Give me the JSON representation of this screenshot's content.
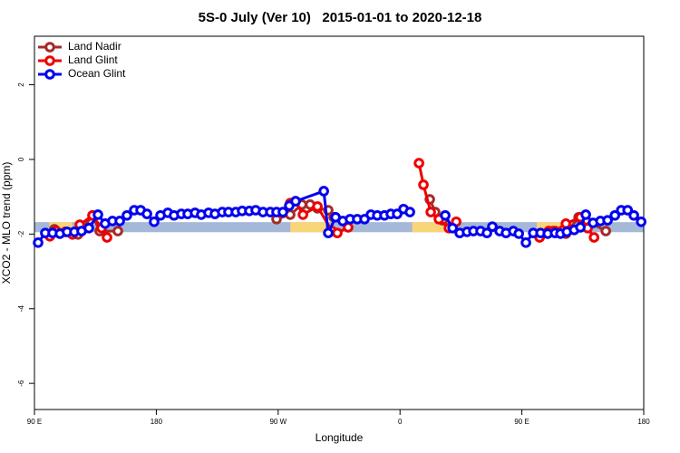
{
  "chart_data": {
    "type": "line",
    "title": "5S-0 July (Ver 10)   2015-01-01 to 2020-12-18",
    "x_label": "Longitude",
    "y_label": "XCO2 - MLO trend (ppm)",
    "xlim": [
      90,
      540
    ],
    "ylim": [
      -6.7,
      3.3
    ],
    "xticks": [
      {
        "value": 90,
        "label": "90 E"
      },
      180,
      {
        "value": 270,
        "label": "90 W"
      },
      {
        "value": 360,
        "label": "0"
      },
      {
        "value": 450,
        "label": "90 E"
      },
      {
        "value": 540,
        "label": "180"
      }
    ],
    "yticks": [
      -6,
      -4,
      -2,
      0,
      2
    ],
    "legend": "top-left",
    "band": {
      "y": [
        -1.95,
        -1.68
      ],
      "color": "#a5b8d8"
    },
    "land_segments": {
      "x": [
        [
          101,
          118
        ],
        [
          279,
          305
        ],
        [
          369,
          396
        ],
        [
          461,
          487
        ]
      ],
      "color": "#f9d57a"
    },
    "series": [
      {
        "name": "Land Nadir",
        "color": "#a52a2a",
        "x": [
          104.7,
          118.1,
          122.2,
          132.9,
          138.2,
          151.6,
          null,
          268.8,
          278.9,
          287.6,
          293.6,
          299.0,
          307.0,
          311.0,
          null,
          382.0,
          386.0,
          391.4,
          null,
          473.1,
          482.5,
          491.9,
          497.2,
          512.0
        ],
        "values": [
          -1.87,
          -1.99,
          -2.01,
          -1.5,
          -1.92,
          -1.92,
          null,
          -1.6,
          -1.48,
          -1.21,
          -1.21,
          -1.31,
          -1.36,
          -1.55,
          null,
          -1.07,
          -1.41,
          -1.63,
          null,
          -1.92,
          -1.99,
          -1.55,
          -1.63,
          -1.92
        ]
      },
      {
        "name": "Land Glint",
        "color": "#ee0000",
        "x": [
          101.4,
          106.1,
          112.8,
          118.1,
          123.5,
          132.9,
          139.6,
          143.6,
          null,
          278.9,
          282.9,
          288.3,
          299.0,
          309.7,
          313.7,
          321.7,
          null,
          374.0,
          377.3,
          382.7,
          388.7,
          396.1,
          401.5,
          null,
          463.1,
          469.8,
          474.5,
          482.5,
          493.2,
          498.6,
          503.3
        ],
        "values": [
          -2.06,
          -1.92,
          -1.94,
          -2.01,
          -1.75,
          -1.5,
          -1.84,
          -2.09,
          null,
          -1.17,
          -1.12,
          -1.48,
          -1.26,
          -1.92,
          -1.97,
          -1.82,
          null,
          -0.1,
          -0.68,
          -1.41,
          -1.6,
          -1.84,
          -1.67,
          null,
          -2.09,
          -1.92,
          -1.92,
          -1.72,
          -1.55,
          -1.84,
          -2.09
        ]
      },
      {
        "name": "Ocean Glint",
        "color": "#0000ee",
        "x": [
          92.7,
          98.0,
          103.4,
          108.8,
          114.1,
          119.5,
          124.8,
          130.2,
          136.9,
          142.2,
          147.6,
          153.0,
          158.3,
          163.7,
          168.4,
          173.1,
          178.4,
          183.1,
          188.5,
          193.1,
          198.5,
          203.2,
          208.6,
          213.2,
          218.6,
          223.3,
          228.7,
          233.3,
          238.7,
          243.4,
          248.7,
          253.4,
          258.8,
          264.2,
          268.8,
          273.5,
          278.2,
          282.9,
          303.7,
          307.0,
          312.4,
          317.7,
          323.1,
          328.4,
          333.8,
          338.5,
          343.2,
          348.5,
          353.2,
          357.9,
          362.6,
          367.3,
          null,
          393.4,
          398.8,
          404.1,
          409.5,
          414.2,
          419.5,
          424.2,
          428.2,
          433.6,
          438.3,
          443.7,
          447.7,
          453.0,
          458.4,
          463.8,
          469.1,
          474.5,
          478.5,
          483.2,
          488.6,
          493.2,
          497.2,
          502.6,
          508.0,
          513.3,
          518.7,
          523.4,
          528.1,
          532.7,
          538.1
        ],
        "values": [
          -2.23,
          -1.97,
          -1.97,
          -1.99,
          -1.94,
          -1.94,
          -1.92,
          -1.84,
          -1.48,
          -1.72,
          -1.65,
          -1.65,
          -1.5,
          -1.36,
          -1.36,
          -1.46,
          -1.67,
          -1.5,
          -1.43,
          -1.5,
          -1.46,
          -1.46,
          -1.43,
          -1.48,
          -1.43,
          -1.46,
          -1.41,
          -1.41,
          -1.41,
          -1.38,
          -1.38,
          -1.36,
          -1.41,
          -1.41,
          -1.41,
          -1.41,
          -1.24,
          -1.12,
          -0.85,
          -1.97,
          -1.55,
          -1.65,
          -1.6,
          -1.6,
          -1.6,
          -1.48,
          -1.5,
          -1.5,
          -1.46,
          -1.46,
          -1.33,
          -1.41,
          null,
          -1.5,
          -1.84,
          -1.97,
          -1.94,
          -1.92,
          -1.92,
          -1.97,
          -1.8,
          -1.92,
          -1.97,
          -1.92,
          -1.99,
          -2.23,
          -1.97,
          -1.97,
          -1.99,
          -1.97,
          -1.99,
          -1.94,
          -1.89,
          -1.82,
          -1.48,
          -1.7,
          -1.65,
          -1.63,
          -1.5,
          -1.36,
          -1.36,
          -1.5,
          -1.67
        ]
      }
    ]
  }
}
